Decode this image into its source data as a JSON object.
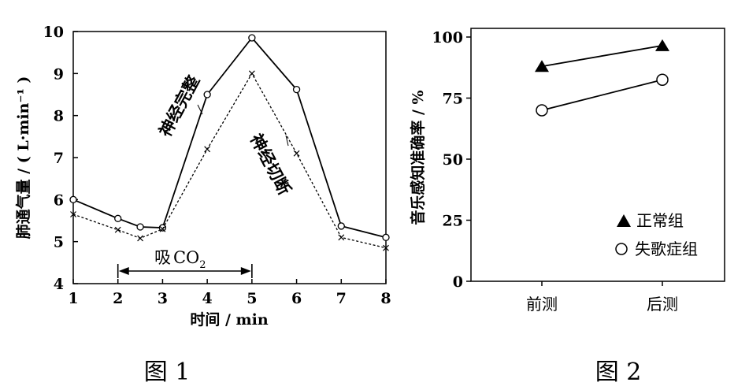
{
  "chart_data": [
    {
      "type": "line",
      "figure_label": "图 1",
      "xlabel": "时间 / min",
      "ylabel": "肺通气量 / ( L·min⁻¹ )",
      "xlim": [
        1,
        8
      ],
      "ylim": [
        4,
        10
      ],
      "x_ticks": [
        "1",
        "2",
        "3",
        "4",
        "5",
        "6",
        "7",
        "8"
      ],
      "y_ticks": [
        "4",
        "5",
        "6",
        "7",
        "8",
        "9",
        "10"
      ],
      "series": [
        {
          "name": "神经完整",
          "line_style": "solid",
          "marker": "circle",
          "points": [
            [
              1,
              6.0
            ],
            [
              2,
              5.55
            ],
            [
              2.5,
              5.35
            ],
            [
              3,
              5.33
            ],
            [
              4,
              8.5
            ],
            [
              5,
              9.85
            ],
            [
              6,
              8.62
            ],
            [
              7,
              5.37
            ],
            [
              8,
              5.1
            ]
          ]
        },
        {
          "name": "神经切断",
          "line_style": "dashed",
          "marker": "x",
          "points": [
            [
              1,
              5.65
            ],
            [
              2,
              5.28
            ],
            [
              2.5,
              5.08
            ],
            [
              3,
              5.3
            ],
            [
              4,
              7.2
            ],
            [
              5,
              9.0
            ],
            [
              6,
              7.1
            ],
            [
              7,
              5.1
            ],
            [
              8,
              4.85
            ]
          ]
        }
      ],
      "annotation": {
        "text_main": "吸",
        "text_formula": "CO",
        "text_subscript": "2",
        "x_start": 2,
        "x_end": 5,
        "y": 4.3
      }
    },
    {
      "type": "line",
      "figure_label": "图 2",
      "xlabel": "",
      "ylabel": "音乐感知准确率 / %",
      "categories": [
        "前测",
        "后测"
      ],
      "ylim": [
        0,
        100
      ],
      "y_ticks": [
        "0",
        "25",
        "50",
        "75",
        "100"
      ],
      "legend_placement": "bottom-right",
      "series": [
        {
          "name": "正常组",
          "marker": "filled-triangle",
          "values": [
            88,
            96.5
          ]
        },
        {
          "name": "失歌症组",
          "marker": "open-circle",
          "values": [
            70,
            82.5
          ]
        }
      ]
    }
  ]
}
